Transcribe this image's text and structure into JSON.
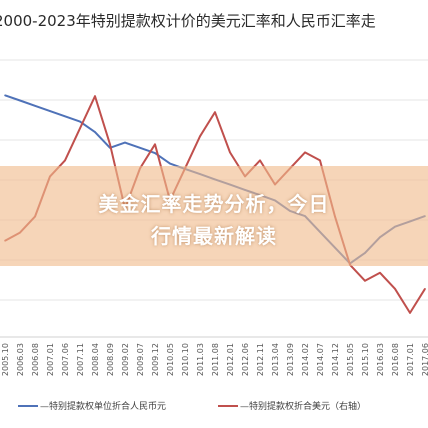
{
  "chart_data": {
    "type": "line",
    "title": "2000-2023年特别提款权计价的美元汇率和人民币汇率走",
    "x": [
      "2005.10",
      "2006.03",
      "2006.08",
      "2007.01",
      "2007.06",
      "2007.11",
      "2008.04",
      "2008.09",
      "2009.02",
      "2009.07",
      "2009.12",
      "2010.05",
      "2010.10",
      "2011.03",
      "2011.08",
      "2012.01",
      "2012.06",
      "2012.11",
      "2013.04",
      "2013.09",
      "2014.02",
      "2014.07",
      "2014.12",
      "2015.05",
      "2015.10",
      "2016.03",
      "2016.08",
      "2017.01",
      "2017.06"
    ],
    "series": [
      {
        "name": "—特别提款权单位折合人民币元",
        "color": "#4f72b8",
        "values": [
          11.6,
          11.5,
          11.4,
          11.3,
          11.2,
          11.1,
          10.9,
          10.6,
          10.7,
          10.6,
          10.5,
          10.3,
          10.2,
          10.1,
          10.0,
          9.9,
          9.8,
          9.7,
          9.6,
          9.4,
          9.3,
          9.0,
          8.7,
          8.4,
          8.6,
          8.9,
          9.1,
          9.2,
          9.3
        ]
      },
      {
        "name": "—特别提款权折合美元（右轴）",
        "color": "#c0504d",
        "values": [
          1.44,
          1.45,
          1.47,
          1.52,
          1.54,
          1.58,
          1.62,
          1.56,
          1.48,
          1.53,
          1.56,
          1.49,
          1.53,
          1.57,
          1.6,
          1.55,
          1.52,
          1.54,
          1.51,
          1.53,
          1.55,
          1.54,
          1.47,
          1.41,
          1.39,
          1.4,
          1.38,
          1.35,
          1.38
        ]
      }
    ]
  },
  "banner": {
    "line1": "美金汇率走势分析，今日",
    "line2": "行情最新解读"
  }
}
